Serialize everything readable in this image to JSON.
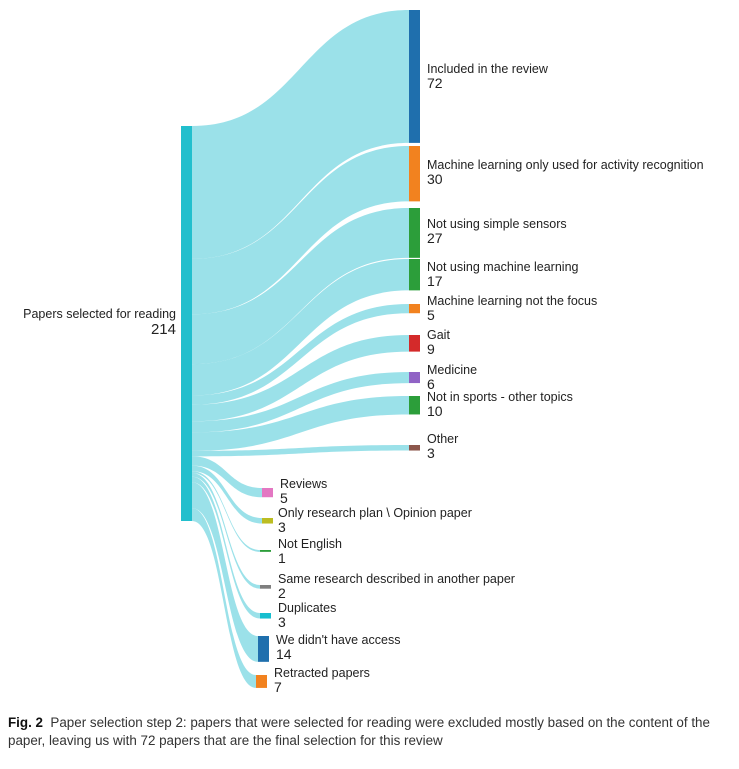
{
  "chart_data": {
    "type": "sankey",
    "source": {
      "label": "Papers selected for reading",
      "value": "214",
      "color": "#22bfcd"
    },
    "targets": [
      {
        "key": "included",
        "label": "Included in the review",
        "value": 72,
        "color": "#1f6fad"
      },
      {
        "key": "ml-activity",
        "label": "Machine learning only used for activity recognition",
        "value": 30,
        "color": "#f2821f"
      },
      {
        "key": "simple-sensors",
        "label": "Not using simple sensors",
        "value": 27,
        "color": "#2c9e3a"
      },
      {
        "key": "not-ml",
        "label": "Not using machine learning",
        "value": 17,
        "color": "#2c9e3a"
      },
      {
        "key": "ml-not-focus",
        "label": "Machine learning not the focus",
        "value": 5,
        "color": "#f2821f"
      },
      {
        "key": "gait",
        "label": "Gait",
        "value": 9,
        "color": "#d42a2a"
      },
      {
        "key": "medicine",
        "label": "Medicine",
        "value": 6,
        "color": "#9063c5"
      },
      {
        "key": "other-topics",
        "label": "Not in sports - other topics",
        "value": 10,
        "color": "#2c9e3a"
      },
      {
        "key": "other",
        "label": "Other",
        "value": 3,
        "color": "#8c564b"
      },
      {
        "key": "reviews",
        "label": "Reviews",
        "value": 5,
        "color": "#e377c2"
      },
      {
        "key": "research-plan",
        "label": "Only research plan \\ Opinion paper",
        "value": 3,
        "color": "#bcbd22"
      },
      {
        "key": "not-english",
        "label": "Not English",
        "value": 1,
        "color": "#2c9e3a"
      },
      {
        "key": "same-research",
        "label": "Same research described in another paper",
        "value": 2,
        "color": "#7f7f7f"
      },
      {
        "key": "duplicates",
        "label": "Duplicates",
        "value": 3,
        "color": "#17becf"
      },
      {
        "key": "no-access",
        "label": "We didn't have access",
        "value": 14,
        "color": "#1f6fad"
      },
      {
        "key": "retracted",
        "label": "Retracted papers",
        "value": 7,
        "color": "#f2821f"
      }
    ]
  },
  "caption": {
    "label": "Fig. 2",
    "text": "Paper selection step 2: papers that were selected for reading were excluded mostly based on the content of the paper, leaving us with 72 papers that are the final selection for this review"
  }
}
